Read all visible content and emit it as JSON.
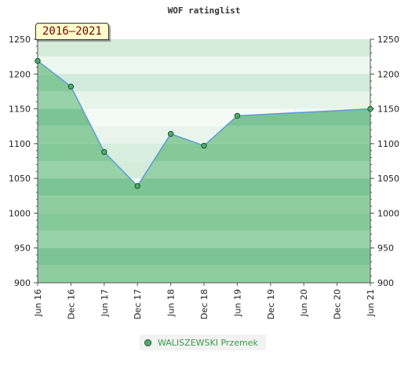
{
  "chart_data": {
    "type": "area",
    "title": "WOF ratinglist",
    "period_label": "2016–2021",
    "xlabel": "",
    "ylabel": "",
    "categories": [
      "Jun 16",
      "Dec 16",
      "Jun 17",
      "Dec 17",
      "Jun 18",
      "Dec 18",
      "Jun 19",
      "Dec 19",
      "Jun 20",
      "Dec 20",
      "Jun 21"
    ],
    "ylim": [
      900,
      1250
    ],
    "yticks": [
      900,
      950,
      1000,
      1050,
      1100,
      1150,
      1200,
      1250
    ],
    "series": [
      {
        "name": "WALISZEWSKI Przemek",
        "points": [
          {
            "x": "Jun 16",
            "y": 1219
          },
          {
            "x": "Dec 16",
            "y": 1182
          },
          {
            "x": "Jun 17",
            "y": 1088
          },
          {
            "x": "Dec 17",
            "y": 1039
          },
          {
            "x": "Jun 18",
            "y": 1114
          },
          {
            "x": "Dec 18",
            "y": 1097
          },
          {
            "x": "Jun 19",
            "y": 1140
          },
          {
            "x": "Jun 21",
            "y": 1150
          }
        ]
      }
    ],
    "legend_position": "bottom",
    "colors": {
      "line": "#5b9bd5",
      "marker": "#4caf6a",
      "fill": "#7dc494"
    }
  }
}
